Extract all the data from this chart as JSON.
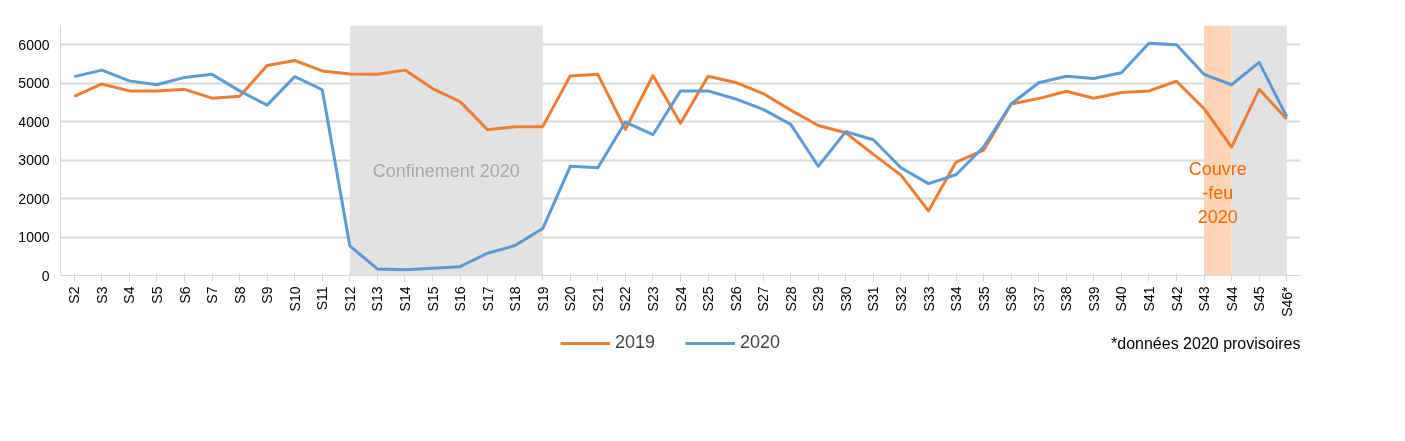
{
  "chart_data": {
    "type": "line",
    "categories": [
      "S2",
      "S3",
      "S4",
      "S5",
      "S6",
      "S7",
      "S8",
      "S9",
      "S10",
      "S11",
      "S12",
      "S13",
      "S14",
      "S15",
      "S16",
      "S17",
      "S18",
      "S19",
      "S20",
      "S21",
      "S22",
      "S23",
      "S24",
      "S25",
      "S26",
      "S27",
      "S28",
      "S29",
      "S30",
      "S31",
      "S32",
      "S33",
      "S34",
      "S35",
      "S36",
      "S37",
      "S38",
      "S39",
      "S40",
      "S41",
      "S42",
      "S43",
      "S44",
      "S45",
      "S46*"
    ],
    "series": [
      {
        "name": "2019",
        "color": "#ed7d31",
        "values": [
          4660,
          4980,
          4800,
          4800,
          4840,
          4610,
          4660,
          5460,
          5590,
          5320,
          5240,
          5230,
          5340,
          4860,
          4520,
          3790,
          3870,
          3870,
          5190,
          5230,
          3800,
          5200,
          3960,
          5180,
          5020,
          4730,
          4300,
          3900,
          3710,
          3150,
          2610,
          1680,
          2950,
          3260,
          4460,
          4600,
          4790,
          4610,
          4760,
          4800,
          5050,
          4340,
          3340,
          4840,
          4070
        ]
      },
      {
        "name": "2020",
        "color": "#5b9bd5",
        "values": [
          5170,
          5340,
          5060,
          4960,
          5150,
          5230,
          4800,
          4430,
          5170,
          4830,
          770,
          170,
          150,
          190,
          230,
          580,
          780,
          1220,
          2840,
          2800,
          3990,
          3660,
          4800,
          4800,
          4590,
          4320,
          3930,
          2840,
          3740,
          3530,
          2800,
          2390,
          2620,
          3340,
          4460,
          5010,
          5180,
          5120,
          5270,
          6040,
          6000,
          5230,
          4960,
          5540,
          4130
        ]
      }
    ],
    "ylim": [
      0,
      6500
    ],
    "yticks": [
      0,
      1000,
      2000,
      3000,
      4000,
      5000,
      6000
    ],
    "grid": "y",
    "legend": "bottom",
    "line_style": "solid",
    "bands": [
      {
        "axis": "x",
        "from": "S12",
        "to": "S19",
        "label": "Confinement 2020",
        "color": "#e2e2e2"
      },
      {
        "axis": "x",
        "from": "S43",
        "to": "S44",
        "label": "Couvre\n-feu\n2020",
        "color": "#fdd5b6"
      },
      {
        "axis": "x",
        "from": "S44",
        "to": "S46*",
        "label": null,
        "color": "#e2e2e2"
      }
    ],
    "annotations": [
      "*données 2020 provisoires"
    ]
  }
}
